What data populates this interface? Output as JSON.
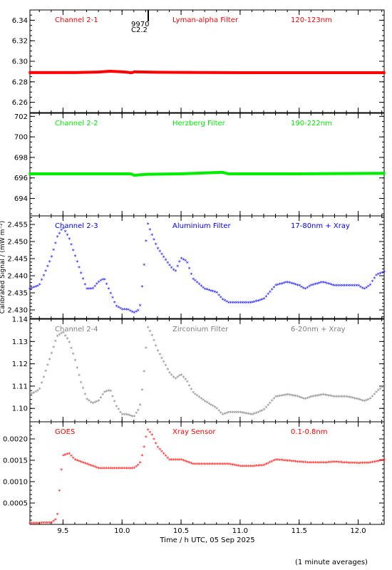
{
  "colors": {
    "frame": "#000000",
    "red": "#ff0000",
    "green": "#00ee00",
    "blue": "#0000ff",
    "gray": "#808080"
  },
  "annotation": {
    "line1": "9970",
    "line2": "C2.2"
  },
  "footer": {
    "xlabel": "Time / h UTC, 05 Sep 2025",
    "note": "(1 minute averages)",
    "ylabel": "Calibrated Signal / (mW m⁻²)"
  },
  "xaxis": {
    "range": [
      9.22,
      12.22
    ],
    "ticks": [
      9.5,
      10.0,
      10.5,
      11.0,
      11.5,
      12.0
    ],
    "tick_labels": [
      "9.5",
      "10.0",
      "10.5",
      "11.0",
      "11.5",
      "12.0"
    ],
    "minor_step": 0.1
  },
  "chart_data": [
    {
      "type": "scatter",
      "channel": "Channel 2-1",
      "filter": "Lyman-alpha Filter",
      "band": "120-123nm",
      "color": "red",
      "ylim": [
        6.25,
        6.35
      ],
      "yticks": [
        6.26,
        6.28,
        6.3,
        6.32,
        6.34
      ],
      "ytick_labels": [
        "6.26",
        "6.28",
        "6.30",
        "6.32",
        "6.34"
      ],
      "minor_step": 0.005,
      "series": [
        {
          "x": [
            9.22,
            9.4,
            9.6,
            9.8,
            9.9,
            10.0,
            10.05,
            10.08,
            10.1,
            10.3,
            10.6,
            11.0,
            11.5,
            12.0,
            12.22
          ],
          "y": [
            6.289,
            6.289,
            6.289,
            6.2895,
            6.2903,
            6.2897,
            6.2893,
            6.2887,
            6.2897,
            6.2893,
            6.2891,
            6.2889,
            6.2889,
            6.2889,
            6.2889
          ]
        }
      ]
    },
    {
      "type": "scatter",
      "channel": "Channel 2-2",
      "filter": "Herzberg Filter",
      "band": "190-222nm",
      "color": "green",
      "ylim": [
        692.3,
        702.3
      ],
      "yticks": [
        694,
        696,
        698,
        700,
        702
      ],
      "ytick_labels": [
        "694",
        "696",
        "698",
        "700",
        "702"
      ],
      "minor_step": 0.5,
      "series": [
        {
          "x": [
            9.22,
            9.5,
            9.9,
            10.08,
            10.1,
            10.2,
            10.5,
            10.85,
            10.9,
            11.5,
            12.22
          ],
          "y": [
            696.4,
            696.4,
            696.4,
            696.4,
            696.25,
            696.35,
            696.4,
            696.55,
            696.4,
            696.4,
            696.45
          ]
        }
      ]
    },
    {
      "type": "scatter",
      "channel": "Channel 2-3",
      "filter": "Aluminium Filter",
      "band": "17-80nm + Xray",
      "color": "blue",
      "ylim": [
        2.4275,
        2.4575
      ],
      "yticks": [
        2.43,
        2.435,
        2.44,
        2.445,
        2.45,
        2.455
      ],
      "ytick_labels": [
        "2.430",
        "2.435",
        "2.440",
        "2.445",
        "2.450",
        "2.455"
      ],
      "minor_step": 0.001,
      "series": [
        {
          "x": [
            9.22,
            9.3,
            9.4,
            9.45,
            9.5,
            9.55,
            9.6,
            9.65,
            9.7,
            9.75,
            9.8,
            9.85,
            9.9,
            9.95,
            10.0,
            10.05,
            10.1,
            10.15,
            10.18,
            10.2,
            10.22,
            10.25,
            10.3,
            10.4,
            10.45,
            10.5,
            10.55,
            10.6,
            10.7,
            10.8,
            10.85,
            10.9,
            11.0,
            11.1,
            11.2,
            11.3,
            11.4,
            11.5,
            11.55,
            11.6,
            11.7,
            11.8,
            11.9,
            12.0,
            12.05,
            12.1,
            12.15,
            12.22
          ],
          "y": [
            2.436,
            2.437,
            2.445,
            2.451,
            2.454,
            2.451,
            2.446,
            2.441,
            2.436,
            2.436,
            2.438,
            2.439,
            2.435,
            2.431,
            2.43,
            2.43,
            2.429,
            2.43,
            2.44,
            2.449,
            2.455,
            2.452,
            2.448,
            2.443,
            2.441,
            2.445,
            2.444,
            2.439,
            2.436,
            2.435,
            2.433,
            2.432,
            2.432,
            2.432,
            2.433,
            2.437,
            2.438,
            2.437,
            2.436,
            2.437,
            2.438,
            2.437,
            2.437,
            2.437,
            2.436,
            2.437,
            2.44,
            2.441
          ]
        }
      ]
    },
    {
      "type": "scatter",
      "channel": "Channel 2-4",
      "filter": "Zirconium Filter",
      "band": "6-20nm + Xray",
      "color": "gray",
      "ylim": [
        1.094,
        1.14
      ],
      "yticks": [
        1.1,
        1.11,
        1.12,
        1.13,
        1.14
      ],
      "ytick_labels": [
        "1.10",
        "1.11",
        "1.12",
        "1.13",
        "1.14"
      ],
      "minor_step": 0.002,
      "series": [
        {
          "x": [
            9.22,
            9.3,
            9.4,
            9.45,
            9.5,
            9.55,
            9.6,
            9.65,
            9.7,
            9.75,
            9.8,
            9.85,
            9.9,
            9.95,
            10.0,
            10.05,
            10.1,
            10.15,
            10.18,
            10.2,
            10.22,
            10.25,
            10.3,
            10.4,
            10.45,
            10.5,
            10.55,
            10.6,
            10.7,
            10.8,
            10.85,
            10.9,
            11.0,
            11.1,
            11.2,
            11.3,
            11.4,
            11.5,
            11.55,
            11.6,
            11.7,
            11.8,
            11.9,
            12.0,
            12.05,
            12.1,
            12.15,
            12.22
          ],
          "y": [
            1.106,
            1.108,
            1.124,
            1.132,
            1.134,
            1.13,
            1.122,
            1.112,
            1.104,
            1.102,
            1.103,
            1.107,
            1.108,
            1.101,
            1.097,
            1.097,
            1.096,
            1.1,
            1.112,
            1.125,
            1.136,
            1.133,
            1.126,
            1.116,
            1.113,
            1.115,
            1.112,
            1.107,
            1.103,
            1.1,
            1.097,
            1.098,
            1.098,
            1.097,
            1.099,
            1.105,
            1.106,
            1.105,
            1.104,
            1.105,
            1.106,
            1.105,
            1.105,
            1.104,
            1.103,
            1.104,
            1.107,
            1.11
          ]
        }
      ]
    },
    {
      "type": "scatter",
      "channel": "GOES",
      "filter": "Xray Sensor",
      "band": "0.1-0.8nm",
      "color": "red",
      "ylim": [
        0.0,
        0.0024
      ],
      "yticks": [
        0.0005,
        0.001,
        0.0015,
        0.002
      ],
      "ytick_labels": [
        "0.0005",
        "0.0010",
        "0.0015",
        "0.0020"
      ],
      "minor_step": 0.0001,
      "series": [
        {
          "x": [
            9.22,
            9.3,
            9.4,
            9.45,
            9.48,
            9.5,
            9.55,
            9.6,
            9.7,
            9.8,
            9.9,
            10.0,
            10.1,
            10.15,
            10.18,
            10.2,
            10.22,
            10.25,
            10.3,
            10.4,
            10.5,
            10.6,
            10.7,
            10.8,
            10.9,
            11.0,
            11.1,
            11.2,
            11.3,
            11.4,
            11.5,
            11.6,
            11.7,
            11.8,
            11.9,
            12.0,
            12.1,
            12.22
          ],
          "y": [
            2e-05,
            2e-05,
            3e-05,
            0.00012,
            0.0011,
            0.0016,
            0.00165,
            0.0015,
            0.0014,
            0.0013,
            0.0013,
            0.0013,
            0.0013,
            0.0014,
            0.0017,
            0.002,
            0.0022,
            0.0021,
            0.0018,
            0.0015,
            0.0015,
            0.0014,
            0.0014,
            0.0014,
            0.0014,
            0.00135,
            0.00135,
            0.00137,
            0.0015,
            0.00148,
            0.00145,
            0.00143,
            0.00143,
            0.00145,
            0.00143,
            0.00142,
            0.00143,
            0.0015
          ]
        }
      ]
    }
  ]
}
